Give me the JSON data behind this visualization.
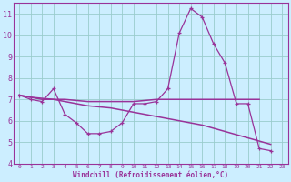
{
  "xlabel": "Windchill (Refroidissement éolien,°C)",
  "background_color": "#cceeff",
  "grid_color": "#99cccc",
  "line_color": "#993399",
  "x_data": [
    0,
    1,
    2,
    3,
    4,
    5,
    6,
    7,
    8,
    9,
    10,
    11,
    12,
    13,
    14,
    15,
    16,
    17,
    18,
    19,
    20,
    21,
    22,
    23
  ],
  "y_main": [
    7.2,
    7.0,
    6.9,
    7.5,
    6.3,
    5.9,
    5.4,
    5.4,
    5.5,
    5.9,
    6.8,
    6.8,
    6.9,
    7.5,
    10.1,
    11.25,
    10.85,
    9.6,
    8.7,
    6.8,
    6.8,
    4.7,
    4.6,
    null
  ],
  "y_trend_flat": [
    7.2,
    7.1,
    7.0,
    7.0,
    7.0,
    6.95,
    6.9,
    6.9,
    6.9,
    6.9,
    6.9,
    6.95,
    7.0,
    7.0,
    7.0,
    7.0,
    7.0,
    7.0,
    7.0,
    7.0,
    7.0,
    7.0,
    null,
    null
  ],
  "y_trend_decline": [
    7.2,
    7.1,
    7.05,
    7.0,
    6.9,
    6.8,
    6.7,
    6.65,
    6.6,
    6.5,
    6.4,
    6.3,
    6.2,
    6.1,
    6.0,
    5.9,
    5.8,
    5.65,
    5.5,
    5.35,
    5.2,
    5.05,
    4.9,
    null
  ],
  "ylim": [
    4,
    11.5
  ],
  "xlim": [
    -0.5,
    23.5
  ],
  "yticks": [
    4,
    5,
    6,
    7,
    8,
    9,
    10,
    11
  ],
  "xtick_labels": [
    "0",
    "1",
    "2",
    "3",
    "4",
    "5",
    "6",
    "7",
    "8",
    "9",
    "10",
    "11",
    "12",
    "13",
    "14",
    "15",
    "16",
    "17",
    "18",
    "19",
    "20",
    "21",
    "22",
    "23"
  ]
}
